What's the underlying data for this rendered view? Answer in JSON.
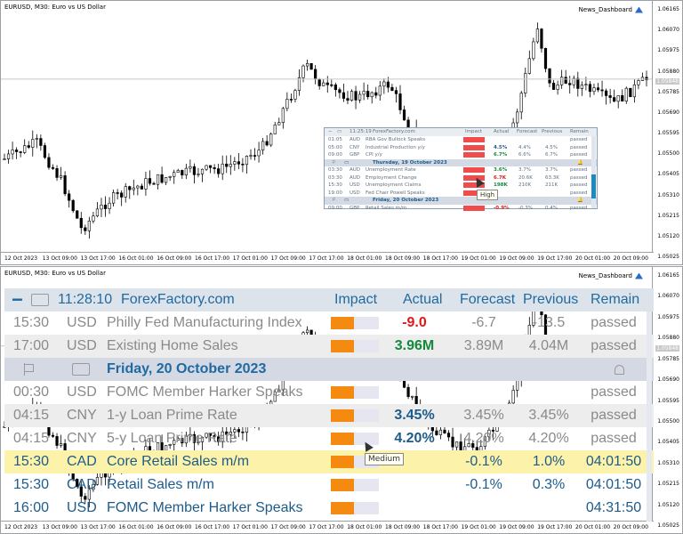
{
  "top_chart": {
    "title": "EURUSD, M30:  Euro vs US Dollar",
    "indicator": "News_Dashboard",
    "price_labels": [
      "1.06165",
      "1.06070",
      "1.05975",
      "1.05880",
      "1.05785",
      "1.05690",
      "1.05595",
      "1.05500",
      "1.05405",
      "1.05310",
      "1.05215",
      "1.05120",
      "1.05025"
    ],
    "current_price": "1.05848",
    "time_labels": [
      "12 Oct 2023",
      "13 Oct 09:00",
      "13 Oct 17:00",
      "16 Oct 01:00",
      "16 Oct 09:00",
      "16 Oct 17:00",
      "17 Oct 01:00",
      "17 Oct 09:00",
      "17 Oct 17:00",
      "18 Oct 01:00",
      "18 Oct 09:00",
      "18 Oct 17:00",
      "19 Oct 01:00",
      "19 Oct 09:00",
      "19 Oct 17:00",
      "20 Oct 01:00",
      "20 Oct 09:00"
    ]
  },
  "mini_dashboard": {
    "header": {
      "time": "11:25:19",
      "source": "ForexFactory.com",
      "impact": "Impact",
      "actual": "Actual",
      "forecast": "Forecast",
      "previous": "Previous",
      "remain": "Remain"
    },
    "rows": [
      {
        "kind": "event",
        "time": "01:05",
        "cur": "AUD",
        "event": "RBA Gov Bullock Speaks",
        "actual": "",
        "forecast": "",
        "previous": "",
        "remain": "passed"
      },
      {
        "kind": "event",
        "time": "05:00",
        "cur": "CNY",
        "event": "Industrial Production y/y",
        "actual": "4.5%",
        "forecast": "4.4%",
        "previous": "4.5%",
        "remain": "passed"
      },
      {
        "kind": "event",
        "time": "09:00",
        "cur": "GBP",
        "event": "CPI y/y",
        "actual": "6.7%",
        "forecast": "6.6%",
        "previous": "6.7%",
        "remain": "passed"
      },
      {
        "kind": "day",
        "label": "Thursday, 19 October 2023"
      },
      {
        "kind": "event",
        "time": "03:30",
        "cur": "AUD",
        "event": "Unemployment Rate",
        "actual": "3.6%",
        "forecast": "3.7%",
        "previous": "3.7%",
        "remain": "passed"
      },
      {
        "kind": "event",
        "time": "03:30",
        "cur": "AUD",
        "event": "Employment Change",
        "actual": "6.7K",
        "forecast": "20.6K",
        "previous": "63.3K",
        "remain": "passed"
      },
      {
        "kind": "event",
        "time": "15:30",
        "cur": "USD",
        "event": "Unemployment Claims",
        "actual": "198K",
        "forecast": "210K",
        "previous": "211K",
        "remain": "passed"
      },
      {
        "kind": "event",
        "time": "19:00",
        "cur": "USD",
        "event": "Fed Chair Powell Speaks",
        "actual": "",
        "forecast": "",
        "previous": "",
        "remain": "passed"
      },
      {
        "kind": "day",
        "label": "Friday, 20 October 2023"
      },
      {
        "kind": "event",
        "time": "09:00",
        "cur": "GBP",
        "event": "Retail Sales m/m",
        "actual": "-0.9%",
        "forecast": "-0.3%",
        "previous": "0.4%",
        "remain": "passed"
      }
    ],
    "tooltip": "High"
  },
  "bottom_chart": {
    "title": "EURUSD, M30:  Euro vs US Dollar",
    "indicator": "News_Dashboard",
    "price_labels": [
      "1.06165",
      "1.06070",
      "1.05975",
      "1.05880",
      "1.05785",
      "1.05690",
      "1.05595",
      "1.05500",
      "1.05405",
      "1.05310",
      "1.05215",
      "1.05120",
      "1.05025"
    ],
    "current_price": "1.05848",
    "time_labels": [
      "12 Oct 2023",
      "13 Oct 09:00",
      "13 Oct 17:00",
      "16 Oct 01:00",
      "16 Oct 09:00",
      "16 Oct 17:00",
      "17 Oct 01:00",
      "17 Oct 09:00",
      "17 Oct 17:00",
      "18 Oct 01:00",
      "18 Oct 09:00",
      "18 Oct 17:00",
      "19 Oct 01:00",
      "19 Oct 09:00",
      "19 Oct 17:00",
      "20 Oct 01:00",
      "20 Oct 09:00"
    ]
  },
  "dashboard": {
    "collapse": "−",
    "header": {
      "time": "11:28:10",
      "source": "ForexFactory.com",
      "impact": "Impact",
      "actual": "Actual",
      "forecast": "Forecast",
      "previous": "Previous",
      "remain": "Remain"
    },
    "rows": [
      {
        "time": "15:30",
        "cur": "USD",
        "event": "Philly Fed Manufacturing Index",
        "actual": "-9.0",
        "forecast": "-6.7",
        "previous": "-13.5",
        "remain": "passed"
      },
      {
        "time": "17:00",
        "cur": "USD",
        "event": "Existing Home Sales",
        "actual": "3.96M",
        "forecast": "3.89M",
        "previous": "4.04M",
        "remain": "passed"
      }
    ],
    "day_label": "Friday, 20 October 2023",
    "day_rows": [
      {
        "time": "00:30",
        "cur": "USD",
        "event": "FOMC Member Harker Speaks",
        "actual": "",
        "forecast": "",
        "previous": "",
        "remain": "passed"
      },
      {
        "time": "04:15",
        "cur": "CNY",
        "event": "1-y Loan Prime Rate",
        "actual": "3.45%",
        "forecast": "3.45%",
        "previous": "3.45%",
        "remain": "passed"
      },
      {
        "time": "04:15",
        "cur": "CNY",
        "event": "5-y Loan Prime Rate",
        "actual": "4.20%",
        "forecast": "4.20%",
        "previous": "4.20%",
        "remain": "passed"
      },
      {
        "time": "15:30",
        "cur": "CAD",
        "event": "Core Retail Sales m/m",
        "actual": "",
        "forecast": "-0.1%",
        "previous": "1.0%",
        "remain": "04:01:50"
      },
      {
        "time": "15:30",
        "cur": "CAD",
        "event": "Retail Sales m/m",
        "actual": "",
        "forecast": "-0.1%",
        "previous": "0.3%",
        "remain": "04:01:50"
      },
      {
        "time": "16:00",
        "cur": "USD",
        "event": "FOMC Member Harker Speaks",
        "actual": "",
        "forecast": "",
        "previous": "",
        "remain": "04:31:50"
      }
    ],
    "tooltip": "Medium"
  },
  "colors": {
    "impact_high": "#f24b4b",
    "impact_medium": "#f58a10",
    "accent": "#1f6aa0",
    "positive": "#138a3c",
    "negative": "#e21818"
  }
}
